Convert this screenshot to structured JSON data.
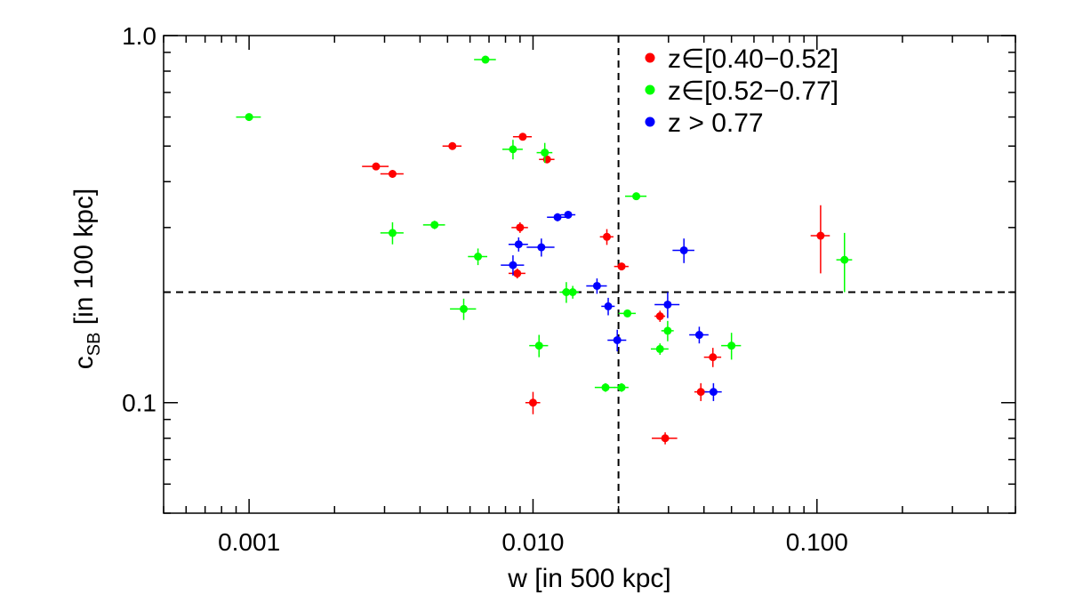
{
  "chart_data": {
    "type": "scatter",
    "x_scale": "log",
    "y_scale": "log",
    "xlim": [
      0.0005,
      0.5
    ],
    "ylim": [
      0.05,
      1.0
    ],
    "xlabel": "w [in 500 kpc]",
    "ylabel_main": "c",
    "ylabel_sub": "SB",
    "ylabel_rest": " [in 100 kpc]",
    "x_tick_labels": [
      {
        "value": 0.001,
        "label": "0.001"
      },
      {
        "value": 0.01,
        "label": "0.010"
      },
      {
        "value": 0.1,
        "label": "0.100"
      }
    ],
    "y_tick_labels": [
      {
        "value": 0.1,
        "label": "0.1"
      },
      {
        "value": 1.0,
        "label": "1.0"
      }
    ],
    "reference_lines": {
      "x": 0.02,
      "y": 0.2
    },
    "legend": [
      {
        "label": "z∈[0.40−0.52]",
        "color": "#ff0000"
      },
      {
        "label": "z∈[0.52−0.77]",
        "color": "#00ff00"
      },
      {
        "label": "z > 0.77",
        "color": "#0000ff"
      }
    ],
    "series": [
      {
        "name": "z∈[0.40−0.52]",
        "color": "#ff0000",
        "points": [
          {
            "x": 0.0028,
            "y": 0.44,
            "xerr": 0.0003,
            "yerr": 0.01
          },
          {
            "x": 0.0032,
            "y": 0.42,
            "xerr": 0.0003,
            "yerr": 0.01
          },
          {
            "x": 0.0052,
            "y": 0.5,
            "xerr": 0.0004,
            "yerr": 0.01
          },
          {
            "x": 0.0092,
            "y": 0.53,
            "xerr": 0.0007,
            "yerr": 0.01
          },
          {
            "x": 0.0112,
            "y": 0.46,
            "xerr": 0.0007,
            "yerr": 0.01
          },
          {
            "x": 0.009,
            "y": 0.3,
            "xerr": 0.0006,
            "yerr": 0.01
          },
          {
            "x": 0.0088,
            "y": 0.225,
            "xerr": 0.0006,
            "yerr": 0.007
          },
          {
            "x": 0.0182,
            "y": 0.283,
            "xerr": 0.001,
            "yerr": 0.014
          },
          {
            "x": 0.0205,
            "y": 0.235,
            "xerr": 0.0012,
            "yerr": 0.005
          },
          {
            "x": 0.01,
            "y": 0.1,
            "xerr": 0.0006,
            "yerr": 0.007
          },
          {
            "x": 0.0292,
            "y": 0.08,
            "xerr": 0.003,
            "yerr": 0.003
          },
          {
            "x": 0.028,
            "y": 0.172,
            "xerr": 0.0012,
            "yerr": 0.006
          },
          {
            "x": 0.039,
            "y": 0.107,
            "xerr": 0.002,
            "yerr": 0.006
          },
          {
            "x": 0.043,
            "y": 0.133,
            "xerr": 0.003,
            "yerr": 0.008
          },
          {
            "x": 0.103,
            "y": 0.285,
            "xerr": 0.008,
            "yerr": 0.06
          }
        ]
      },
      {
        "name": "z∈[0.52−0.77]",
        "color": "#00ff00",
        "points": [
          {
            "x": 0.001,
            "y": 0.6,
            "xerr": 0.0001,
            "yerr": 0.01
          },
          {
            "x": 0.0068,
            "y": 0.86,
            "xerr": 0.0006,
            "yerr": 0.02
          },
          {
            "x": 0.0085,
            "y": 0.49,
            "xerr": 0.0007,
            "yerr": 0.03
          },
          {
            "x": 0.011,
            "y": 0.48,
            "xerr": 0.0007,
            "yerr": 0.03
          },
          {
            "x": 0.0045,
            "y": 0.305,
            "xerr": 0.0004,
            "yerr": 0.008
          },
          {
            "x": 0.0032,
            "y": 0.29,
            "xerr": 0.0003,
            "yerr": 0.02
          },
          {
            "x": 0.0064,
            "y": 0.25,
            "xerr": 0.0005,
            "yerr": 0.013
          },
          {
            "x": 0.0231,
            "y": 0.365,
            "xerr": 0.002,
            "yerr": 0.007
          },
          {
            "x": 0.0057,
            "y": 0.18,
            "xerr": 0.0006,
            "yerr": 0.012
          },
          {
            "x": 0.0131,
            "y": 0.2,
            "xerr": 0.0007,
            "yerr": 0.013
          },
          {
            "x": 0.0138,
            "y": 0.2,
            "xerr": 0.0007,
            "yerr": 0.008
          },
          {
            "x": 0.0215,
            "y": 0.175,
            "xerr": 0.0015,
            "yerr": 0.004
          },
          {
            "x": 0.0105,
            "y": 0.143,
            "xerr": 0.0008,
            "yerr": 0.01
          },
          {
            "x": 0.0298,
            "y": 0.157,
            "xerr": 0.0015,
            "yerr": 0.01
          },
          {
            "x": 0.028,
            "y": 0.14,
            "xerr": 0.002,
            "yerr": 0.005
          },
          {
            "x": 0.05,
            "y": 0.143,
            "xerr": 0.004,
            "yerr": 0.012
          },
          {
            "x": 0.018,
            "y": 0.11,
            "xerr": 0.0015,
            "yerr": 0.003
          },
          {
            "x": 0.0205,
            "y": 0.11,
            "xerr": 0.0012,
            "yerr": 0.003
          },
          {
            "x": 0.125,
            "y": 0.245,
            "xerr": 0.008,
            "yerr": 0.045
          }
        ]
      },
      {
        "name": "z > 0.77",
        "color": "#0000ff",
        "points": [
          {
            "x": 0.0122,
            "y": 0.32,
            "xerr": 0.001,
            "yerr": 0.008
          },
          {
            "x": 0.0133,
            "y": 0.325,
            "xerr": 0.0008,
            "yerr": 0.004
          },
          {
            "x": 0.0089,
            "y": 0.27,
            "xerr": 0.0007,
            "yerr": 0.012
          },
          {
            "x": 0.0107,
            "y": 0.265,
            "xerr": 0.0012,
            "yerr": 0.015
          },
          {
            "x": 0.0085,
            "y": 0.237,
            "xerr": 0.0008,
            "yerr": 0.015
          },
          {
            "x": 0.0168,
            "y": 0.208,
            "xerr": 0.0014,
            "yerr": 0.01
          },
          {
            "x": 0.0184,
            "y": 0.183,
            "xerr": 0.001,
            "yerr": 0.01
          },
          {
            "x": 0.0198,
            "y": 0.148,
            "xerr": 0.0015,
            "yerr": 0.01
          },
          {
            "x": 0.0298,
            "y": 0.185,
            "xerr": 0.003,
            "yerr": 0.015
          },
          {
            "x": 0.034,
            "y": 0.26,
            "xerr": 0.003,
            "yerr": 0.02
          },
          {
            "x": 0.0385,
            "y": 0.153,
            "xerr": 0.003,
            "yerr": 0.008
          },
          {
            "x": 0.0432,
            "y": 0.107,
            "xerr": 0.003,
            "yerr": 0.006
          }
        ]
      }
    ]
  }
}
